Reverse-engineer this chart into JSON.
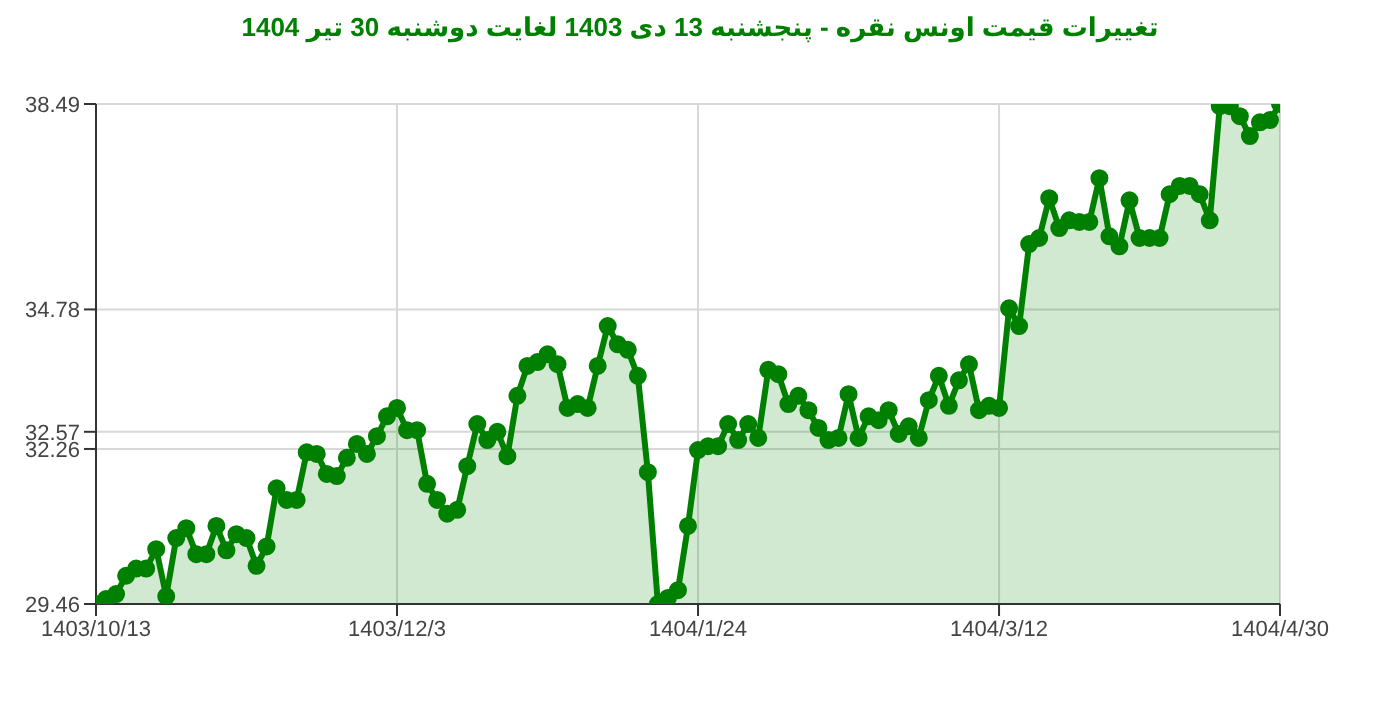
{
  "chart_data": {
    "type": "area",
    "title": "تغییرات قیمت اونس نقره - پنجشنبه  13 دی 1403 لغایت  دوشنبه  30 تیر 1404",
    "categories": [
      "1403/10/13",
      null,
      null,
      null,
      null,
      null,
      null,
      null,
      null,
      null,
      null,
      null,
      null,
      null,
      null,
      null,
      null,
      null,
      null,
      null,
      null,
      null,
      null,
      null,
      null,
      null,
      null,
      null,
      null,
      null,
      "1403/12/3",
      null,
      null,
      null,
      null,
      null,
      null,
      null,
      null,
      null,
      null,
      null,
      null,
      null,
      null,
      null,
      null,
      null,
      null,
      null,
      null,
      null,
      null,
      null,
      null,
      null,
      null,
      null,
      null,
      null,
      "1404/1/24",
      null,
      null,
      null,
      null,
      null,
      null,
      null,
      null,
      null,
      null,
      null,
      null,
      null,
      null,
      null,
      null,
      null,
      null,
      null,
      null,
      null,
      null,
      null,
      null,
      null,
      null,
      null,
      null,
      null,
      "1404/3/12",
      null,
      null,
      null,
      null,
      null,
      null,
      null,
      null,
      null,
      null,
      null,
      null,
      null,
      null,
      null,
      null,
      null,
      null,
      null,
      null,
      null,
      null,
      null,
      null,
      null,
      null,
      null,
      "1404/4/30"
    ],
    "series": [
      {
        "color": "#008000",
        "values": [
          29.46,
          29.55,
          29.64,
          29.97,
          30.1,
          30.1,
          30.45,
          29.6,
          30.65,
          30.83,
          30.36,
          30.36,
          30.87,
          30.43,
          30.72,
          30.65,
          30.15,
          30.5,
          31.55,
          31.34,
          31.34,
          32.2,
          32.17,
          31.81,
          31.77,
          32.1,
          32.35,
          32.17,
          32.49,
          32.85,
          33.0,
          32.6,
          32.6,
          31.63,
          31.34,
          31.09,
          31.16,
          31.95,
          32.71,
          32.42,
          32.57,
          32.13,
          33.22,
          33.76,
          33.83,
          33.97,
          33.79,
          33.0,
          33.07,
          33.0,
          33.76,
          34.48,
          34.15,
          34.05,
          33.58,
          31.84,
          29.46,
          29.57,
          29.71,
          30.87,
          32.24,
          32.31,
          32.31,
          32.71,
          32.42,
          32.71,
          32.46,
          33.69,
          33.61,
          33.07,
          33.22,
          32.96,
          32.64,
          32.42,
          32.46,
          33.25,
          32.46,
          32.85,
          32.78,
          32.96,
          32.53,
          32.67,
          32.46,
          33.14,
          33.58,
          33.04,
          33.5,
          33.79,
          32.96,
          33.04,
          33.0,
          34.8,
          34.48,
          35.96,
          36.07,
          36.79,
          36.25,
          36.39,
          36.36,
          36.36,
          37.15,
          36.1,
          35.92,
          36.75,
          36.07,
          36.07,
          36.07,
          36.86,
          37.01,
          37.01,
          36.86,
          36.39,
          38.45,
          38.45,
          38.27,
          37.91,
          38.16,
          38.2,
          38.49
        ]
      }
    ],
    "ylim": [
      29.46,
      38.49
    ],
    "yticks": [
      29.46,
      32.26,
      32.57,
      34.78,
      38.49
    ],
    "grid": true,
    "marker": "circle"
  }
}
